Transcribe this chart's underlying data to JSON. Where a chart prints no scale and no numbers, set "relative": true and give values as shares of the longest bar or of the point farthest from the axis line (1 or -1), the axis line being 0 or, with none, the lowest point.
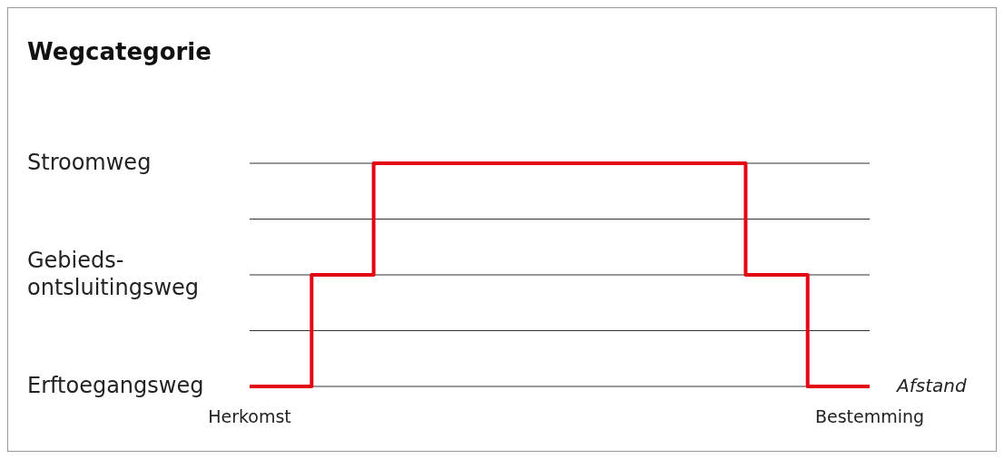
{
  "chart_data": {
    "type": "step",
    "title": "Wegcategorie",
    "xlabel": "Afstand",
    "relative": true,
    "grid": "y",
    "categories": [
      "Herkomst",
      null,
      null,
      null,
      null,
      null,
      null,
      null,
      null,
      null,
      null,
      null,
      null,
      null,
      null,
      null,
      null,
      null,
      null,
      null,
      "Bestemming"
    ],
    "series": [
      {
        "color": "#e30613",
        "values": [
          0,
          0,
          0.5,
          0.5,
          1,
          1,
          1,
          1,
          1,
          1,
          1,
          1,
          1,
          1,
          1,
          1,
          0.5,
          0.5,
          0,
          0,
          0
        ]
      }
    ],
    "annotations": [
      "Erftoegangsweg",
      "Gebieds-\nontsluitingsweg",
      "Stroomweg"
    ]
  }
}
